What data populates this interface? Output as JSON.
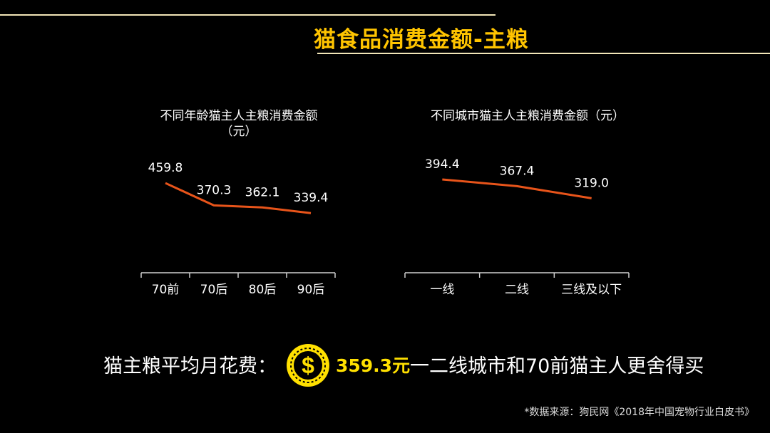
{
  "page": {
    "title": "猫食品消费金额-主粮",
    "summary_label": "猫主粮平均月花费：",
    "coin_symbol": "$",
    "summary_amount": "359.3元",
    "summary_note": "一二线城市和70前猫主人更舍得买",
    "source": "*数据来源：狗民网《2018年中国宠物行业白皮书》"
  },
  "colors": {
    "accent": "#ffc400",
    "line": "#e8541a",
    "coin": "#ffe000"
  },
  "chart_data": [
    {
      "type": "line",
      "title_line1": "不同年龄猫主人主粮消费金额",
      "title_line2": "（元）",
      "categories": [
        "70前",
        "70后",
        "80后",
        "90后"
      ],
      "values": [
        459.8,
        370.3,
        362.1,
        339.4
      ],
      "labels": [
        "459.8",
        "370.3",
        "362.1",
        "339.4"
      ]
    },
    {
      "type": "line",
      "title_line1": "不同城市猫主人主粮消费金额（元）",
      "categories": [
        "一线",
        "二线",
        "三线及以下"
      ],
      "values": [
        394.4,
        367.4,
        319.0
      ],
      "labels": [
        "394.4",
        "367.4",
        "319.0"
      ]
    }
  ]
}
